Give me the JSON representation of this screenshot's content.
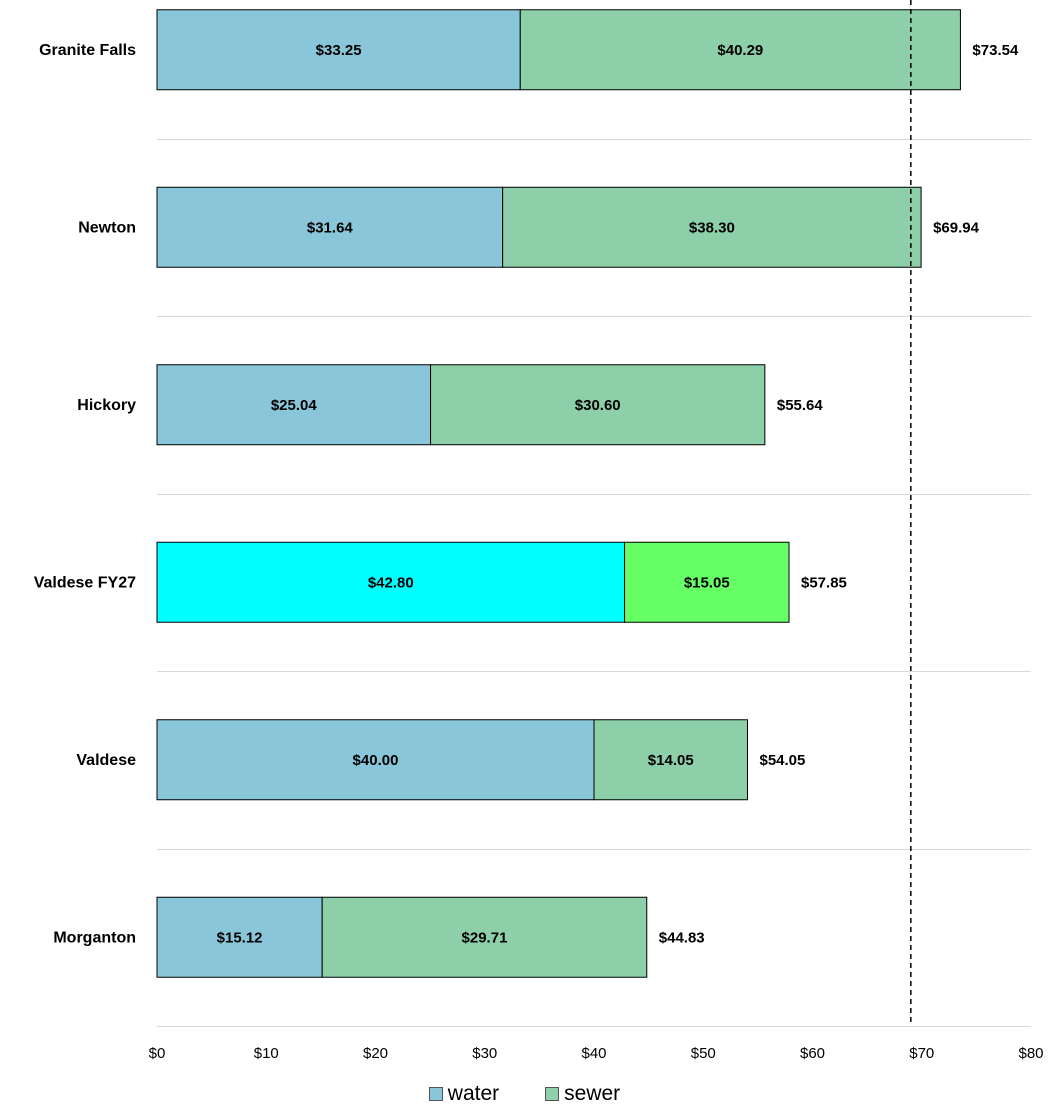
{
  "chart_data": {
    "type": "bar",
    "orientation": "horizontal",
    "stacked": true,
    "categories": [
      "Granite Falls",
      "Newton",
      "Hickory",
      "Valdese FY27",
      "Valdese",
      "Morganton"
    ],
    "series": [
      {
        "name": "water",
        "values": [
          33.25,
          31.64,
          25.04,
          42.8,
          40.0,
          15.12
        ],
        "value_labels": [
          "$33.25",
          "$31.64",
          "$25.04",
          "$42.80",
          "$40.00",
          "$15.12"
        ]
      },
      {
        "name": "sewer",
        "values": [
          40.29,
          38.3,
          30.6,
          15.05,
          14.05,
          29.71
        ],
        "value_labels": [
          "$40.29",
          "$38.30",
          "$30.60",
          "$15.05",
          "$14.05",
          "$29.71"
        ]
      }
    ],
    "totals": [
      73.54,
      69.94,
      55.64,
      57.85,
      54.05,
      44.83
    ],
    "total_labels": [
      "$73.54",
      "$69.94",
      "$55.64",
      "$57.85",
      "$54.05",
      "$44.83"
    ],
    "xlim": [
      0,
      80
    ],
    "x_ticks": [
      0,
      10,
      20,
      30,
      40,
      50,
      60,
      70,
      80
    ],
    "x_tick_labels": [
      "$0",
      "$10",
      "$20",
      "$30",
      "$40",
      "$50",
      "$60",
      "$70",
      "$80"
    ],
    "reference_line": {
      "x": 69,
      "style": "dashed"
    },
    "grid": "horizontal separators between categories",
    "legend_position": "bottom",
    "colors": {
      "water": "#8ac6d9",
      "sewer": "#8ccfa8",
      "water_highlight": "#00ffff",
      "sewer_highlight": "#66ff66",
      "gridline": "#d9d9d9",
      "bar_border": "#000000"
    },
    "highlight_category": "Valdese FY27",
    "title": "",
    "xlabel": "",
    "ylabel": ""
  },
  "legend": {
    "items": [
      {
        "label": "water",
        "color": "#8ac6d9"
      },
      {
        "label": "sewer",
        "color": "#8ccfa8"
      }
    ]
  }
}
